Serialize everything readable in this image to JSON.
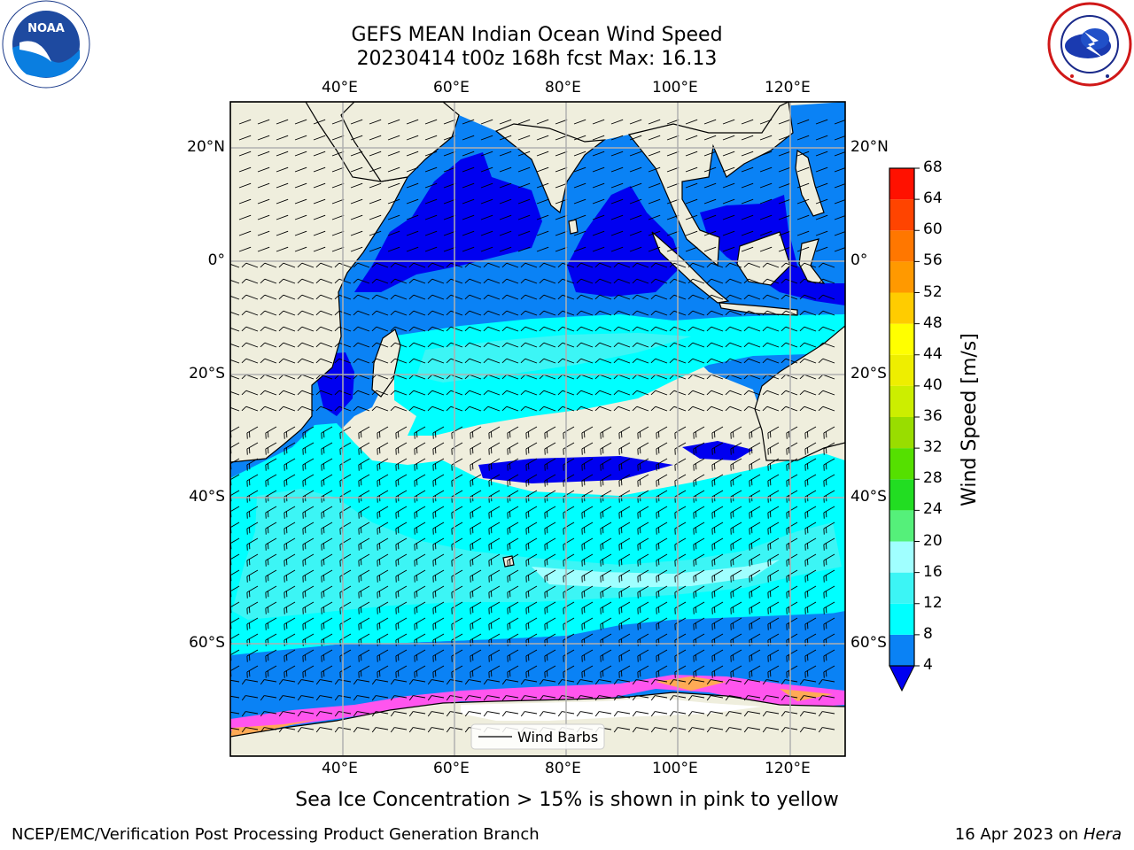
{
  "title": {
    "line1": "GEFS MEAN Indian Ocean Wind Speed",
    "line2": "20230414 t00z 168h fcst   Max: 16.13"
  },
  "logos": {
    "left": {
      "name": "NOAA",
      "ring_text": "NATIONAL OCEANIC AND ATMOSPHERIC ADMINISTRATION · U.S. DEPARTMENT OF COMMERCE"
    },
    "right": {
      "name": "NATIONAL WEATHER SERVICE"
    }
  },
  "map": {
    "lon_ticks_top": [
      "40°E",
      "60°E",
      "80°E",
      "100°E",
      "120°E"
    ],
    "lon_ticks_bottom": [
      "40°E",
      "60°E",
      "80°E",
      "100°E",
      "120°E"
    ],
    "lat_ticks_left": [
      "20°N",
      "0°",
      "20°S",
      "40°S",
      "60°S"
    ],
    "lat_ticks_right": [
      "20°N",
      "0°",
      "20°S",
      "40°S",
      "60°S"
    ],
    "legend_label": "Wind Barbs",
    "colors": {
      "land": "#efeedd",
      "ws_4_8": "#0a82f5",
      "ws_0_4": "#0000f0",
      "ws_8_12": "#00ffff",
      "ws_12_16": "#3cf5f5",
      "ws_16_20": "#a0ffff",
      "ice_pink": "#ff55ee",
      "ice_orange": "#ffaa55",
      "ice_yellow": "#ffee99"
    }
  },
  "colorbar": {
    "label": "Wind Speed [m/s]",
    "ticks": [
      "4",
      "8",
      "12",
      "16",
      "20",
      "24",
      "28",
      "32",
      "36",
      "40",
      "44",
      "48",
      "52",
      "56",
      "60",
      "64",
      "68"
    ],
    "colors": [
      "#0a82f5",
      "#00ffff",
      "#3cf5f5",
      "#a0ffff",
      "#55f07a",
      "#22dd22",
      "#55e000",
      "#99dd00",
      "#ccee00",
      "#eeee00",
      "#ffff00",
      "#ffcc00",
      "#ff9900",
      "#ff7700",
      "#ff4400",
      "#ff1100"
    ],
    "under_color": "#0000f0"
  },
  "caption": "Sea Ice Concentration > 15% is shown in pink to yellow",
  "footer": {
    "left": "NCEP/EMC/Verification Post Processing Product Generation Branch",
    "right_date": "16 Apr 2023 on ",
    "right_machine": "Hera"
  }
}
